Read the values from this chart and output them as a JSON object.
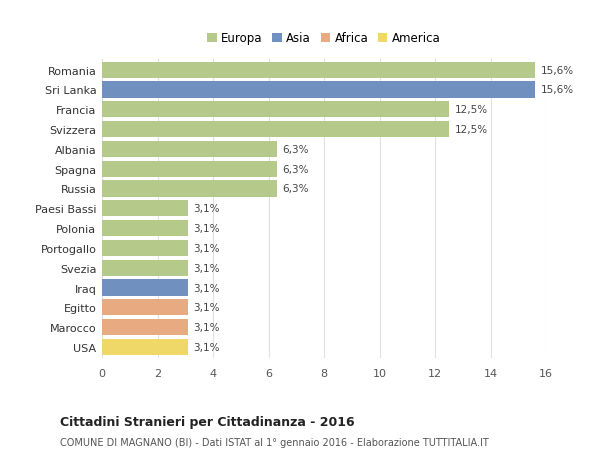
{
  "countries": [
    "Romania",
    "Sri Lanka",
    "Francia",
    "Svizzera",
    "Albania",
    "Spagna",
    "Russia",
    "Paesi Bassi",
    "Polonia",
    "Portogallo",
    "Svezia",
    "Iraq",
    "Egitto",
    "Marocco",
    "USA"
  ],
  "values": [
    15.6,
    15.6,
    12.5,
    12.5,
    6.3,
    6.3,
    6.3,
    3.1,
    3.1,
    3.1,
    3.1,
    3.1,
    3.1,
    3.1,
    3.1
  ],
  "labels": [
    "15,6%",
    "15,6%",
    "12,5%",
    "12,5%",
    "6,3%",
    "6,3%",
    "6,3%",
    "3,1%",
    "3,1%",
    "3,1%",
    "3,1%",
    "3,1%",
    "3,1%",
    "3,1%",
    "3,1%"
  ],
  "continents": [
    "Europa",
    "Asia",
    "Europa",
    "Europa",
    "Europa",
    "Europa",
    "Europa",
    "Europa",
    "Europa",
    "Europa",
    "Europa",
    "Asia",
    "Africa",
    "Africa",
    "America"
  ],
  "colors": {
    "Europa": "#b5c98a",
    "Asia": "#7090c0",
    "Africa": "#e8aa80",
    "America": "#f0d868"
  },
  "title": "Cittadini Stranieri per Cittadinanza - 2016",
  "subtitle": "COMUNE DI MAGNANO (BI) - Dati ISTAT al 1° gennaio 2016 - Elaborazione TUTTITALIA.IT",
  "xlim": [
    0,
    16
  ],
  "xticks": [
    0,
    2,
    4,
    6,
    8,
    10,
    12,
    14,
    16
  ],
  "background_color": "#ffffff",
  "grid_color": "#e0e0e0",
  "bar_height": 0.82
}
